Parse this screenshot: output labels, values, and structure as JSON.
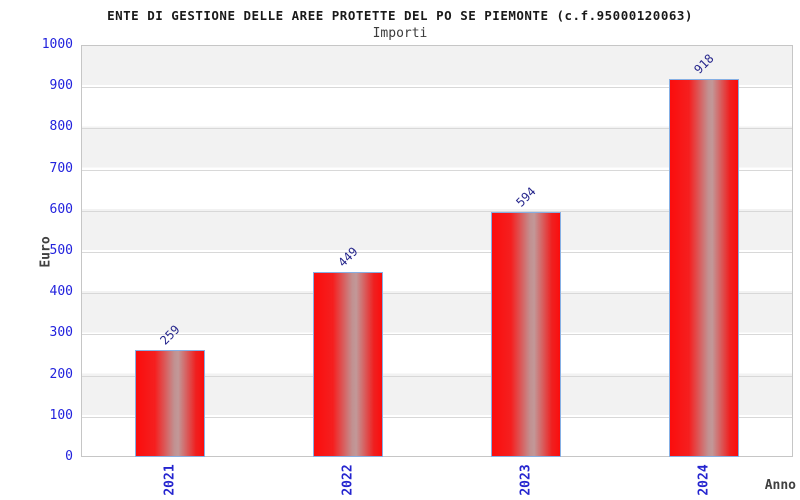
{
  "chart_data": {
    "type": "bar",
    "title": "ENTE DI GESTIONE DELLE AREE PROTETTE DEL PO SE PIEMONTE (c.f.95000120063)",
    "subtitle": "Importi",
    "xlabel": "Anno",
    "ylabel": "Euro",
    "categories": [
      "2021",
      "2022",
      "2023",
      "2024"
    ],
    "values": [
      259,
      449,
      594,
      918
    ],
    "ylim": [
      0,
      1000
    ],
    "ytick_step": 100,
    "grid": true,
    "legend": false,
    "bands": true,
    "colors": {
      "bar_fill": "#ff0000",
      "bar_highlight": "#c29494",
      "bar_border": "#85afe4",
      "tick_text": "#2222dd",
      "value_label_text": "#26268c",
      "axis_label_text": "#404040",
      "band_gray": "#f2f2f2",
      "gridline": "#d8d8d8",
      "plot_border": "#c6c6c6",
      "background": "#ffffff"
    }
  }
}
